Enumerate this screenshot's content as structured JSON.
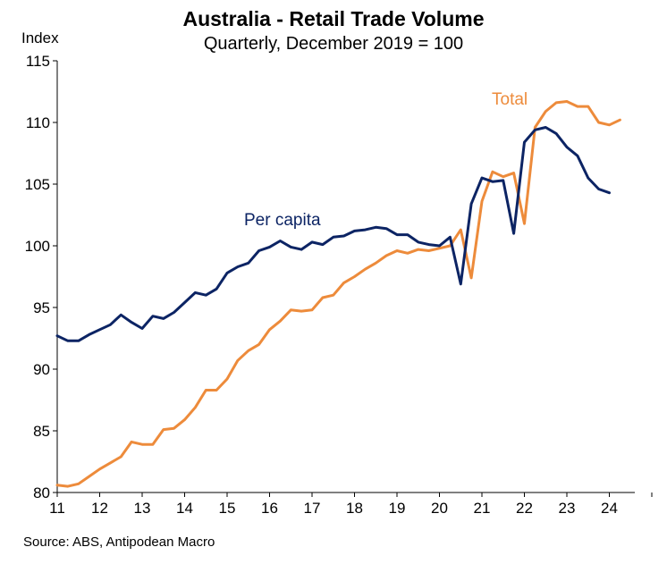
{
  "chart_data": {
    "type": "line",
    "title": "Australia - Retail Trade Volume",
    "subtitle": "Quarterly, December 2019 = 100",
    "ylabel": "Index",
    "xlabel": "",
    "source": "Source: ABS, Antipodean Macro",
    "ylim": [
      80,
      115
    ],
    "yticks": [
      80,
      85,
      90,
      95,
      100,
      105,
      110,
      115
    ],
    "xlim": [
      2011,
      2025
    ],
    "xticks": [
      "11",
      "12",
      "13",
      "14",
      "15",
      "16",
      "17",
      "18",
      "19",
      "20",
      "21",
      "22",
      "23",
      "24"
    ],
    "grid": false,
    "colors": {
      "total": "#ED8B3B",
      "per_capita": "#0C2464"
    },
    "series": [
      {
        "name": "Total",
        "color": "#ED8B3B",
        "values": [
          80.6,
          80.5,
          80.7,
          81.3,
          81.9,
          82.4,
          82.9,
          84.1,
          83.9,
          83.9,
          85.1,
          85.2,
          85.9,
          86.9,
          88.3,
          88.3,
          89.2,
          90.7,
          91.5,
          92.0,
          93.2,
          93.9,
          94.8,
          94.7,
          94.8,
          95.8,
          96.0,
          97.0,
          97.5,
          98.1,
          98.6,
          99.2,
          99.6,
          99.4,
          99.7,
          99.6,
          99.8,
          100.0,
          101.3,
          97.4,
          103.6,
          106.0,
          105.6,
          105.9,
          101.8,
          109.6,
          110.9,
          111.6,
          111.7,
          111.3,
          111.3,
          110.0,
          109.8,
          110.2
        ]
      },
      {
        "name": "Per capita",
        "color": "#0C2464",
        "values": [
          92.7,
          92.3,
          92.3,
          92.8,
          93.2,
          93.6,
          94.4,
          93.8,
          93.3,
          94.3,
          94.1,
          94.6,
          95.4,
          96.2,
          96.0,
          96.5,
          97.8,
          98.3,
          98.6,
          99.6,
          99.9,
          100.4,
          99.9,
          99.7,
          100.3,
          100.1,
          100.7,
          100.8,
          101.2,
          101.3,
          101.5,
          101.4,
          100.9,
          100.9,
          100.3,
          100.1,
          100.0,
          100.7,
          96.9,
          103.4,
          105.5,
          105.2,
          105.3,
          101.0,
          108.4,
          109.4,
          109.6,
          109.1,
          108.0,
          107.3,
          105.5,
          104.6,
          104.3
        ]
      }
    ]
  }
}
